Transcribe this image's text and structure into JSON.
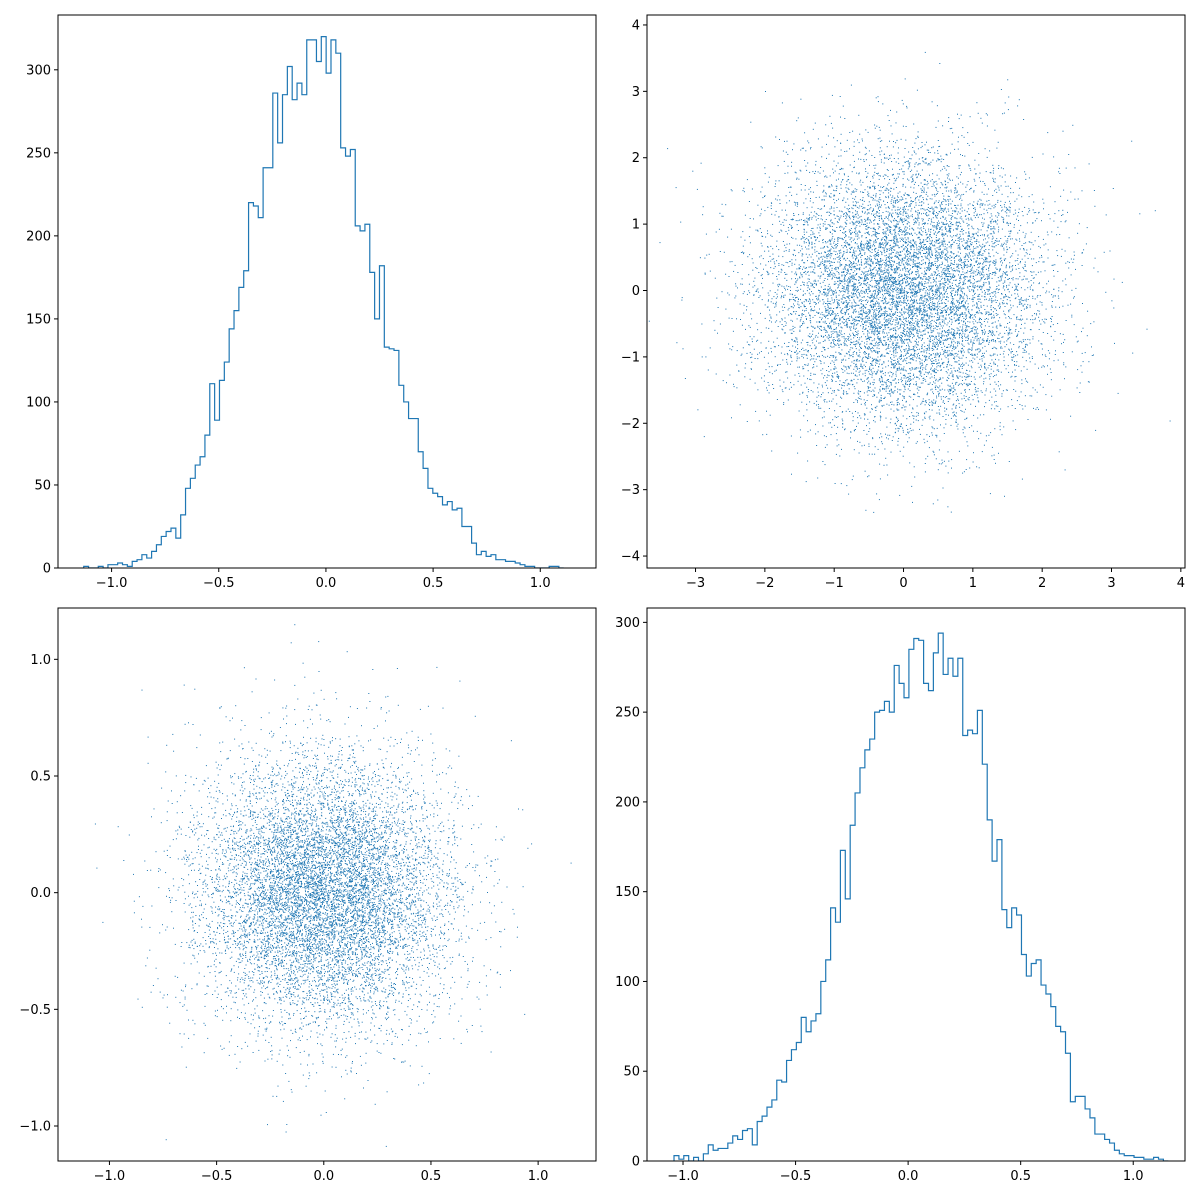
{
  "colors": {
    "series": "#1f77b4",
    "axes": "#000000",
    "background": "#ffffff"
  },
  "chart_data": [
    {
      "id": "top-left",
      "type": "histogram",
      "histtype": "step",
      "xlim": [
        -1.25,
        1.26
      ],
      "ylim": [
        0,
        333
      ],
      "xticks": [
        {
          "v": -1.0,
          "label": "−1.0"
        },
        {
          "v": -0.5,
          "label": "−0.5"
        },
        {
          "v": 0.0,
          "label": "0.0"
        },
        {
          "v": 0.5,
          "label": "0.5"
        },
        {
          "v": 1.0,
          "label": "1.0"
        }
      ],
      "yticks": [
        {
          "v": 0,
          "label": "0"
        },
        {
          "v": 50,
          "label": "50"
        },
        {
          "v": 100,
          "label": "100"
        },
        {
          "v": 150,
          "label": "150"
        },
        {
          "v": 200,
          "label": "200"
        },
        {
          "v": 250,
          "label": "250"
        },
        {
          "v": 300,
          "label": "300"
        }
      ],
      "bin_start": -1.13,
      "bin_width": 0.02262,
      "counts": [
        1,
        0,
        0,
        1,
        0,
        2,
        2,
        3,
        2,
        1,
        4,
        5,
        8,
        6,
        10,
        14,
        19,
        22,
        24,
        18,
        32,
        48,
        54,
        62,
        67,
        80,
        111,
        89,
        113,
        124,
        144,
        155,
        169,
        179,
        220,
        218,
        211,
        241,
        241,
        286,
        256,
        285,
        302,
        282,
        292,
        285,
        318,
        318,
        305,
        320,
        298,
        318,
        310,
        253,
        248,
        252,
        206,
        203,
        207,
        178,
        150,
        182,
        133,
        132,
        131,
        110,
        100,
        90,
        90,
        70,
        60,
        48,
        45,
        43,
        38,
        40,
        35,
        36,
        25,
        25,
        15,
        8,
        10,
        7,
        8,
        5,
        5,
        4,
        4,
        3,
        2,
        1,
        1,
        0,
        0,
        0,
        1,
        1,
        0
      ]
    },
    {
      "id": "top-right",
      "type": "scatter",
      "marker": "pixel",
      "n_points": 10000,
      "std": 1.0,
      "xlim": [
        -3.7,
        4.06
      ],
      "ylim": [
        -4.18,
        4.15
      ],
      "xticks": [
        {
          "v": -3,
          "label": "−3"
        },
        {
          "v": -2,
          "label": "−2"
        },
        {
          "v": -1,
          "label": "−1"
        },
        {
          "v": 0,
          "label": "0"
        },
        {
          "v": 1,
          "label": "1"
        },
        {
          "v": 2,
          "label": "2"
        },
        {
          "v": 3,
          "label": "3"
        },
        {
          "v": 4,
          "label": "4"
        }
      ],
      "yticks": [
        {
          "v": -4,
          "label": "−4"
        },
        {
          "v": -3,
          "label": "−3"
        },
        {
          "v": -2,
          "label": "−2"
        },
        {
          "v": -1,
          "label": "−1"
        },
        {
          "v": 0,
          "label": "0"
        },
        {
          "v": 1,
          "label": "1"
        },
        {
          "v": 2,
          "label": "2"
        },
        {
          "v": 3,
          "label": "3"
        },
        {
          "v": 4,
          "label": "4"
        }
      ]
    },
    {
      "id": "bottom-left",
      "type": "scatter",
      "marker": "pixel",
      "n_points": 10000,
      "std": 0.29,
      "xlim": [
        -1.24,
        1.27
      ],
      "ylim": [
        -1.15,
        1.22
      ],
      "xticks": [
        {
          "v": -1.0,
          "label": "−1.0"
        },
        {
          "v": -0.5,
          "label": "−0.5"
        },
        {
          "v": 0.0,
          "label": "0.0"
        },
        {
          "v": 0.5,
          "label": "0.5"
        },
        {
          "v": 1.0,
          "label": "1.0"
        }
      ],
      "yticks": [
        {
          "v": -1.0,
          "label": "−1.0"
        },
        {
          "v": -0.5,
          "label": "−0.5"
        },
        {
          "v": 0.0,
          "label": "0.0"
        },
        {
          "v": 0.5,
          "label": "0.5"
        },
        {
          "v": 1.0,
          "label": "1.0"
        }
      ]
    },
    {
      "id": "bottom-right",
      "type": "histogram",
      "histtype": "step",
      "xlim": [
        -1.16,
        1.23
      ],
      "ylim": [
        0,
        308
      ],
      "xticks": [
        {
          "v": -1.0,
          "label": "−1.0"
        },
        {
          "v": -0.5,
          "label": "−0.5"
        },
        {
          "v": 0.0,
          "label": "0.0"
        },
        {
          "v": 0.5,
          "label": "0.5"
        },
        {
          "v": 1.0,
          "label": "1.0"
        }
      ],
      "yticks": [
        {
          "v": 0,
          "label": "0"
        },
        {
          "v": 50,
          "label": "50"
        },
        {
          "v": 100,
          "label": "100"
        },
        {
          "v": 150,
          "label": "150"
        },
        {
          "v": 200,
          "label": "200"
        },
        {
          "v": 250,
          "label": "250"
        },
        {
          "v": 300,
          "label": "300"
        }
      ],
      "bin_start": -1.04,
      "bin_width": 0.02174,
      "counts": [
        3,
        1,
        3,
        0,
        2,
        0,
        4,
        9,
        6,
        7,
        7,
        10,
        14,
        12,
        17,
        18,
        9,
        22,
        25,
        30,
        34,
        45,
        44,
        56,
        62,
        66,
        80,
        72,
        78,
        82,
        100,
        112,
        141,
        133,
        173,
        146,
        187,
        205,
        219,
        229,
        235,
        250,
        251,
        256,
        250,
        276,
        266,
        258,
        285,
        291,
        290,
        266,
        262,
        283,
        294,
        271,
        280,
        270,
        280,
        237,
        240,
        238,
        251,
        221,
        190,
        167,
        179,
        140,
        130,
        141,
        137,
        115,
        103,
        110,
        112,
        98,
        93,
        86,
        75,
        72,
        60,
        33,
        36,
        36,
        29,
        24,
        15,
        15,
        12,
        10,
        6,
        4,
        3,
        3,
        2,
        2,
        1,
        1,
        2,
        1,
        0
      ]
    }
  ]
}
